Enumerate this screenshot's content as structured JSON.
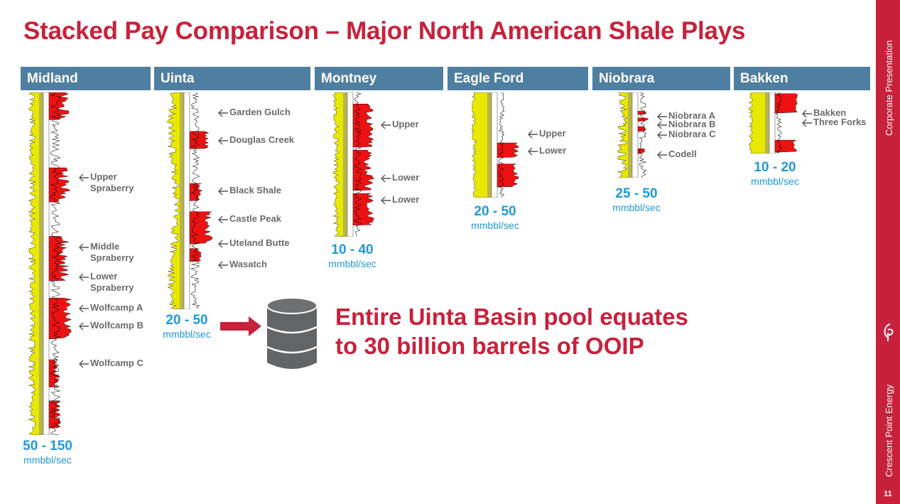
{
  "title": "Stacked Pay Comparison – Major North American Shale Plays",
  "sidebar": {
    "top_text": "Corporate Presentation",
    "bottom_text": "Crescent Point Energy",
    "page_number": "11"
  },
  "columns": [
    {
      "name": "Midland",
      "rate": "50 - 150",
      "unit": "mmbbl/sec"
    },
    {
      "name": "Uinta",
      "rate": "20 - 50",
      "unit": "mmbbl/sec"
    },
    {
      "name": "Montney",
      "rate": "10 - 40",
      "unit": "mmbbl/sec"
    },
    {
      "name": "Eagle Ford",
      "rate": "20 - 50",
      "unit": "mmbbl/sec"
    },
    {
      "name": "Niobrara",
      "rate": "25 - 50",
      "unit": "mmbbl/sec"
    },
    {
      "name": "Bakken",
      "rate": "10 - 20",
      "unit": "mmbbl/sec"
    }
  ],
  "labels": {
    "midland": [
      "Upper Spraberry",
      "Middle Spraberry",
      "Lower Spraberry",
      "Wolfcamp A",
      "Wolfcamp B",
      "Wolfcamp C"
    ],
    "uinta": [
      "Garden Gulch",
      "Douglas Creek",
      "Black Shale",
      "Castle Peak",
      "Uteland Butte",
      "Wasatch"
    ],
    "montney": [
      "Upper",
      "Lower",
      "Lower"
    ],
    "eagleford": [
      "Upper",
      "Lower"
    ],
    "niobrara": [
      "Niobrara A",
      "Niobrara B",
      "Niobrara C",
      "Codell"
    ],
    "bakken": [
      "Bakken",
      "Three Forks"
    ]
  },
  "callout": {
    "line1": "Entire Uinta Basin pool equates",
    "line2": "to 30 billion barrels of OOIP"
  },
  "colors": {
    "brand_red": "#c8213b",
    "header_blue": "#4f7fa0",
    "rate_blue": "#1e9ad6",
    "log_yellow": "#e8e800",
    "log_red": "#ee1111",
    "barrel_gray": "#636466"
  }
}
